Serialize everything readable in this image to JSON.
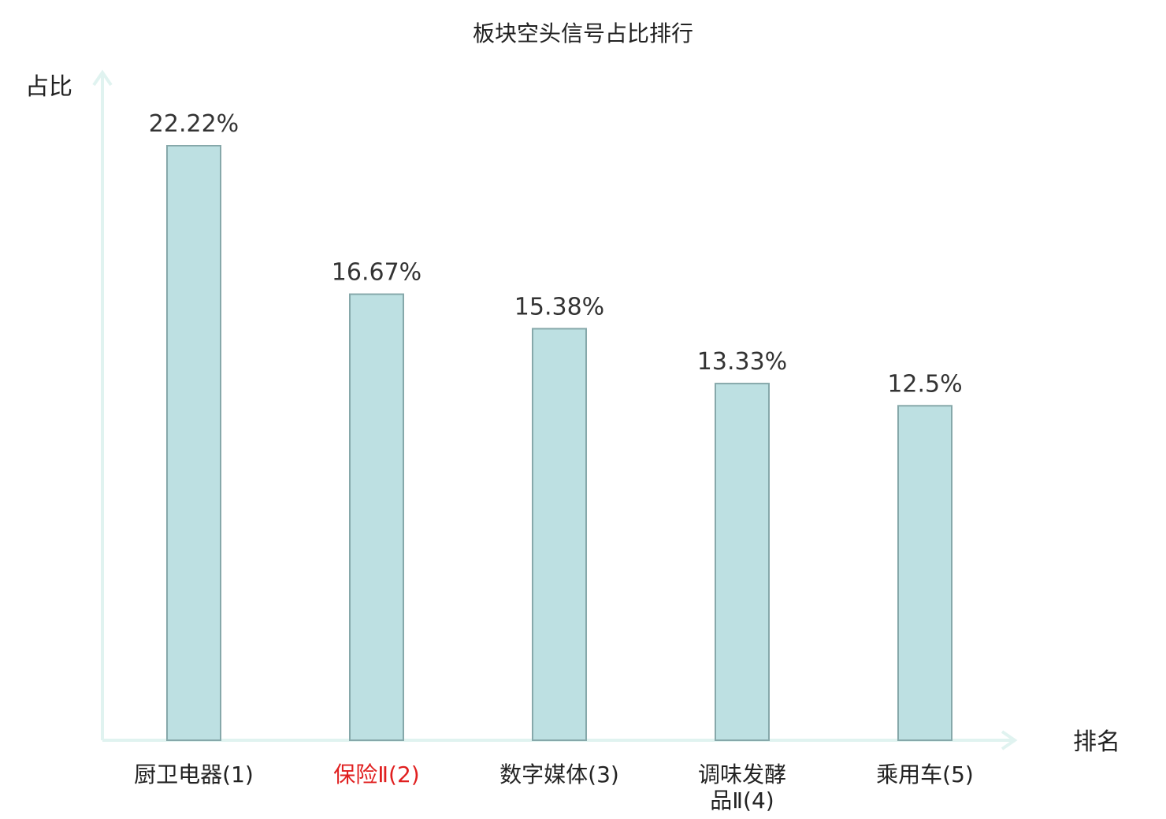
{
  "chart_data": {
    "type": "bar",
    "title": "板块空头信号占比排行",
    "ylabel": "占比",
    "xlabel": "排名",
    "categories": [
      {
        "lines": [
          "厨卫电器(1)"
        ],
        "highlight": false
      },
      {
        "lines": [
          "保险Ⅱ(2)"
        ],
        "highlight": true
      },
      {
        "lines": [
          "数字媒体(3)"
        ],
        "highlight": false
      },
      {
        "lines": [
          "调味发酵",
          "品Ⅱ(4)"
        ],
        "highlight": false
      },
      {
        "lines": [
          "乘用车(5)"
        ],
        "highlight": false
      }
    ],
    "values": [
      22.22,
      16.67,
      15.38,
      13.33,
      12.5
    ],
    "value_labels": [
      "22.22%",
      "16.67%",
      "15.38%",
      "13.33%",
      "12.5%"
    ],
    "ylim": [
      0,
      22.22
    ],
    "grid": false,
    "colors": {
      "bar_fill": "#bde0e2",
      "bar_stroke": "#86a8aa",
      "axis": "#e0f3f0",
      "label_text": "#222222",
      "highlight_text": "#e02020"
    }
  }
}
